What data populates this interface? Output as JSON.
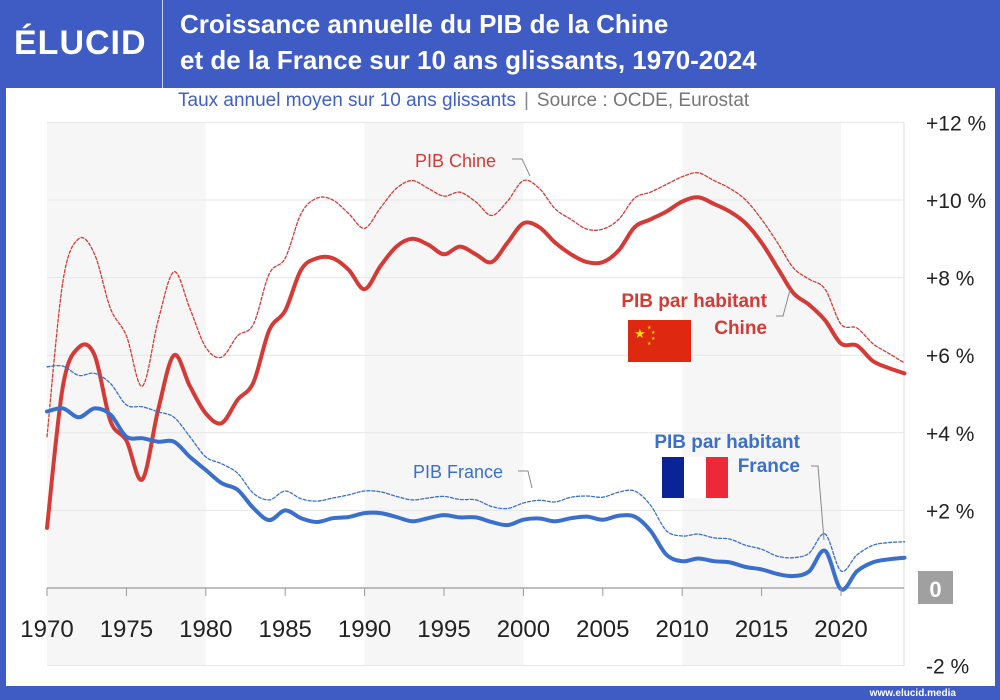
{
  "header": {
    "logo": "ÉLUCID",
    "title_line1": "Croissance annuelle du PIB de la Chine",
    "title_line2": "et de la France sur 10 ans glissants, 1970-2024"
  },
  "subtitle": {
    "text": "Taux annuel moyen sur 10 ans glissants",
    "separator": "|",
    "source": "Source : OCDE, Eurostat"
  },
  "footer": {
    "url": "www.elucid.media"
  },
  "colors": {
    "brand": "#3f5bc4",
    "china": "#d43a36",
    "france": "#3a6fcc"
  },
  "chart_data": {
    "type": "line",
    "title": "Croissance annuelle du PIB de la Chine et de la France sur 10 ans glissants, 1970-2024",
    "ylim": [
      -2,
      12
    ],
    "xlim": [
      1970,
      2024
    ],
    "grid": true,
    "x_ticks": [
      "1970",
      "1975",
      "1980",
      "1985",
      "1990",
      "1995",
      "2000",
      "2005",
      "2010",
      "2015",
      "2020"
    ],
    "y_ticks": [
      {
        "v": 12,
        "label": "+12 %"
      },
      {
        "v": 10,
        "label": "+10 %"
      },
      {
        "v": 8,
        "label": "+8 %"
      },
      {
        "v": 6,
        "label": "+6 %"
      },
      {
        "v": 4,
        "label": "+4 %"
      },
      {
        "v": 2,
        "label": "+2 %"
      },
      {
        "v": 0,
        "label": "0"
      },
      {
        "v": -2,
        "label": "-2 %"
      }
    ],
    "x": [
      1970,
      1971,
      1972,
      1973,
      1974,
      1975,
      1976,
      1977,
      1978,
      1979,
      1980,
      1981,
      1982,
      1983,
      1984,
      1985,
      1986,
      1987,
      1988,
      1989,
      1990,
      1991,
      1992,
      1993,
      1994,
      1995,
      1996,
      1997,
      1998,
      1999,
      2000,
      2001,
      2002,
      2003,
      2004,
      2005,
      2006,
      2007,
      2008,
      2009,
      2010,
      2011,
      2012,
      2013,
      2014,
      2015,
      2016,
      2017,
      2018,
      2019,
      2020,
      2021,
      2022,
      2023,
      2024
    ],
    "series": [
      {
        "name": "PIB Chine",
        "style": "dashed",
        "color": "#d43a36",
        "values": [
          3.9,
          7.9,
          9.0,
          8.6,
          7.2,
          6.5,
          5.2,
          6.9,
          8.15,
          7.2,
          6.2,
          5.95,
          6.5,
          6.8,
          8.1,
          8.5,
          9.65,
          10.05,
          10.0,
          9.65,
          9.27,
          9.8,
          10.3,
          10.5,
          10.3,
          10.1,
          10.2,
          9.95,
          9.6,
          9.97,
          10.5,
          10.3,
          9.77,
          9.5,
          9.25,
          9.25,
          9.5,
          10.05,
          10.2,
          10.4,
          10.6,
          10.7,
          10.5,
          10.3,
          10.0,
          9.5,
          8.9,
          8.25,
          7.96,
          7.7,
          6.8,
          6.7,
          6.3,
          6.05,
          5.8
        ]
      },
      {
        "name": "PIB par habitant Chine",
        "style": "solid",
        "color": "#d43a36",
        "values": [
          1.55,
          5.2,
          6.2,
          6.0,
          4.3,
          3.8,
          2.8,
          4.6,
          6.0,
          5.2,
          4.5,
          4.25,
          4.85,
          5.3,
          6.65,
          7.15,
          8.2,
          8.5,
          8.5,
          8.2,
          7.7,
          8.3,
          8.8,
          9.0,
          8.85,
          8.6,
          8.8,
          8.6,
          8.4,
          8.9,
          9.4,
          9.3,
          8.9,
          8.6,
          8.4,
          8.4,
          8.7,
          9.3,
          9.5,
          9.7,
          9.96,
          10.07,
          9.9,
          9.7,
          9.4,
          8.9,
          8.25,
          7.6,
          7.3,
          6.9,
          6.3,
          6.25,
          5.85,
          5.67,
          5.53
        ]
      },
      {
        "name": "PIB France",
        "style": "dashed",
        "color": "#3a6fcc",
        "values": [
          5.7,
          5.72,
          5.48,
          5.53,
          5.27,
          4.72,
          4.67,
          4.54,
          4.4,
          3.9,
          3.38,
          3.2,
          2.96,
          2.44,
          2.27,
          2.5,
          2.3,
          2.24,
          2.32,
          2.4,
          2.5,
          2.48,
          2.36,
          2.27,
          2.32,
          2.36,
          2.28,
          2.27,
          2.1,
          2.05,
          2.19,
          2.26,
          2.22,
          2.34,
          2.37,
          2.34,
          2.47,
          2.5,
          2.14,
          1.48,
          1.34,
          1.39,
          1.29,
          1.26,
          1.1,
          1.0,
          0.82,
          0.78,
          0.9,
          1.39,
          0.44,
          0.85,
          1.1,
          1.17,
          1.19
        ]
      },
      {
        "name": "PIB par habitant France",
        "style": "solid",
        "color": "#3a6fcc",
        "values": [
          4.55,
          4.63,
          4.4,
          4.63,
          4.47,
          3.9,
          3.86,
          3.77,
          3.77,
          3.38,
          3.04,
          2.7,
          2.53,
          2.06,
          1.75,
          2.0,
          1.8,
          1.7,
          1.8,
          1.83,
          1.93,
          1.93,
          1.83,
          1.72,
          1.8,
          1.88,
          1.82,
          1.82,
          1.7,
          1.62,
          1.76,
          1.79,
          1.72,
          1.8,
          1.84,
          1.76,
          1.86,
          1.84,
          1.48,
          0.86,
          0.69,
          0.76,
          0.69,
          0.66,
          0.54,
          0.48,
          0.36,
          0.31,
          0.43,
          0.96,
          -0.03,
          0.43,
          0.66,
          0.74,
          0.78
        ]
      }
    ],
    "annotations": {
      "china_total": "PIB Chine",
      "france_total": "PIB France",
      "china_pc_line1": "PIB par habitant",
      "china_pc_line2": "Chine",
      "france_pc_line1": "PIB par habitant",
      "france_pc_line2": "France"
    }
  }
}
